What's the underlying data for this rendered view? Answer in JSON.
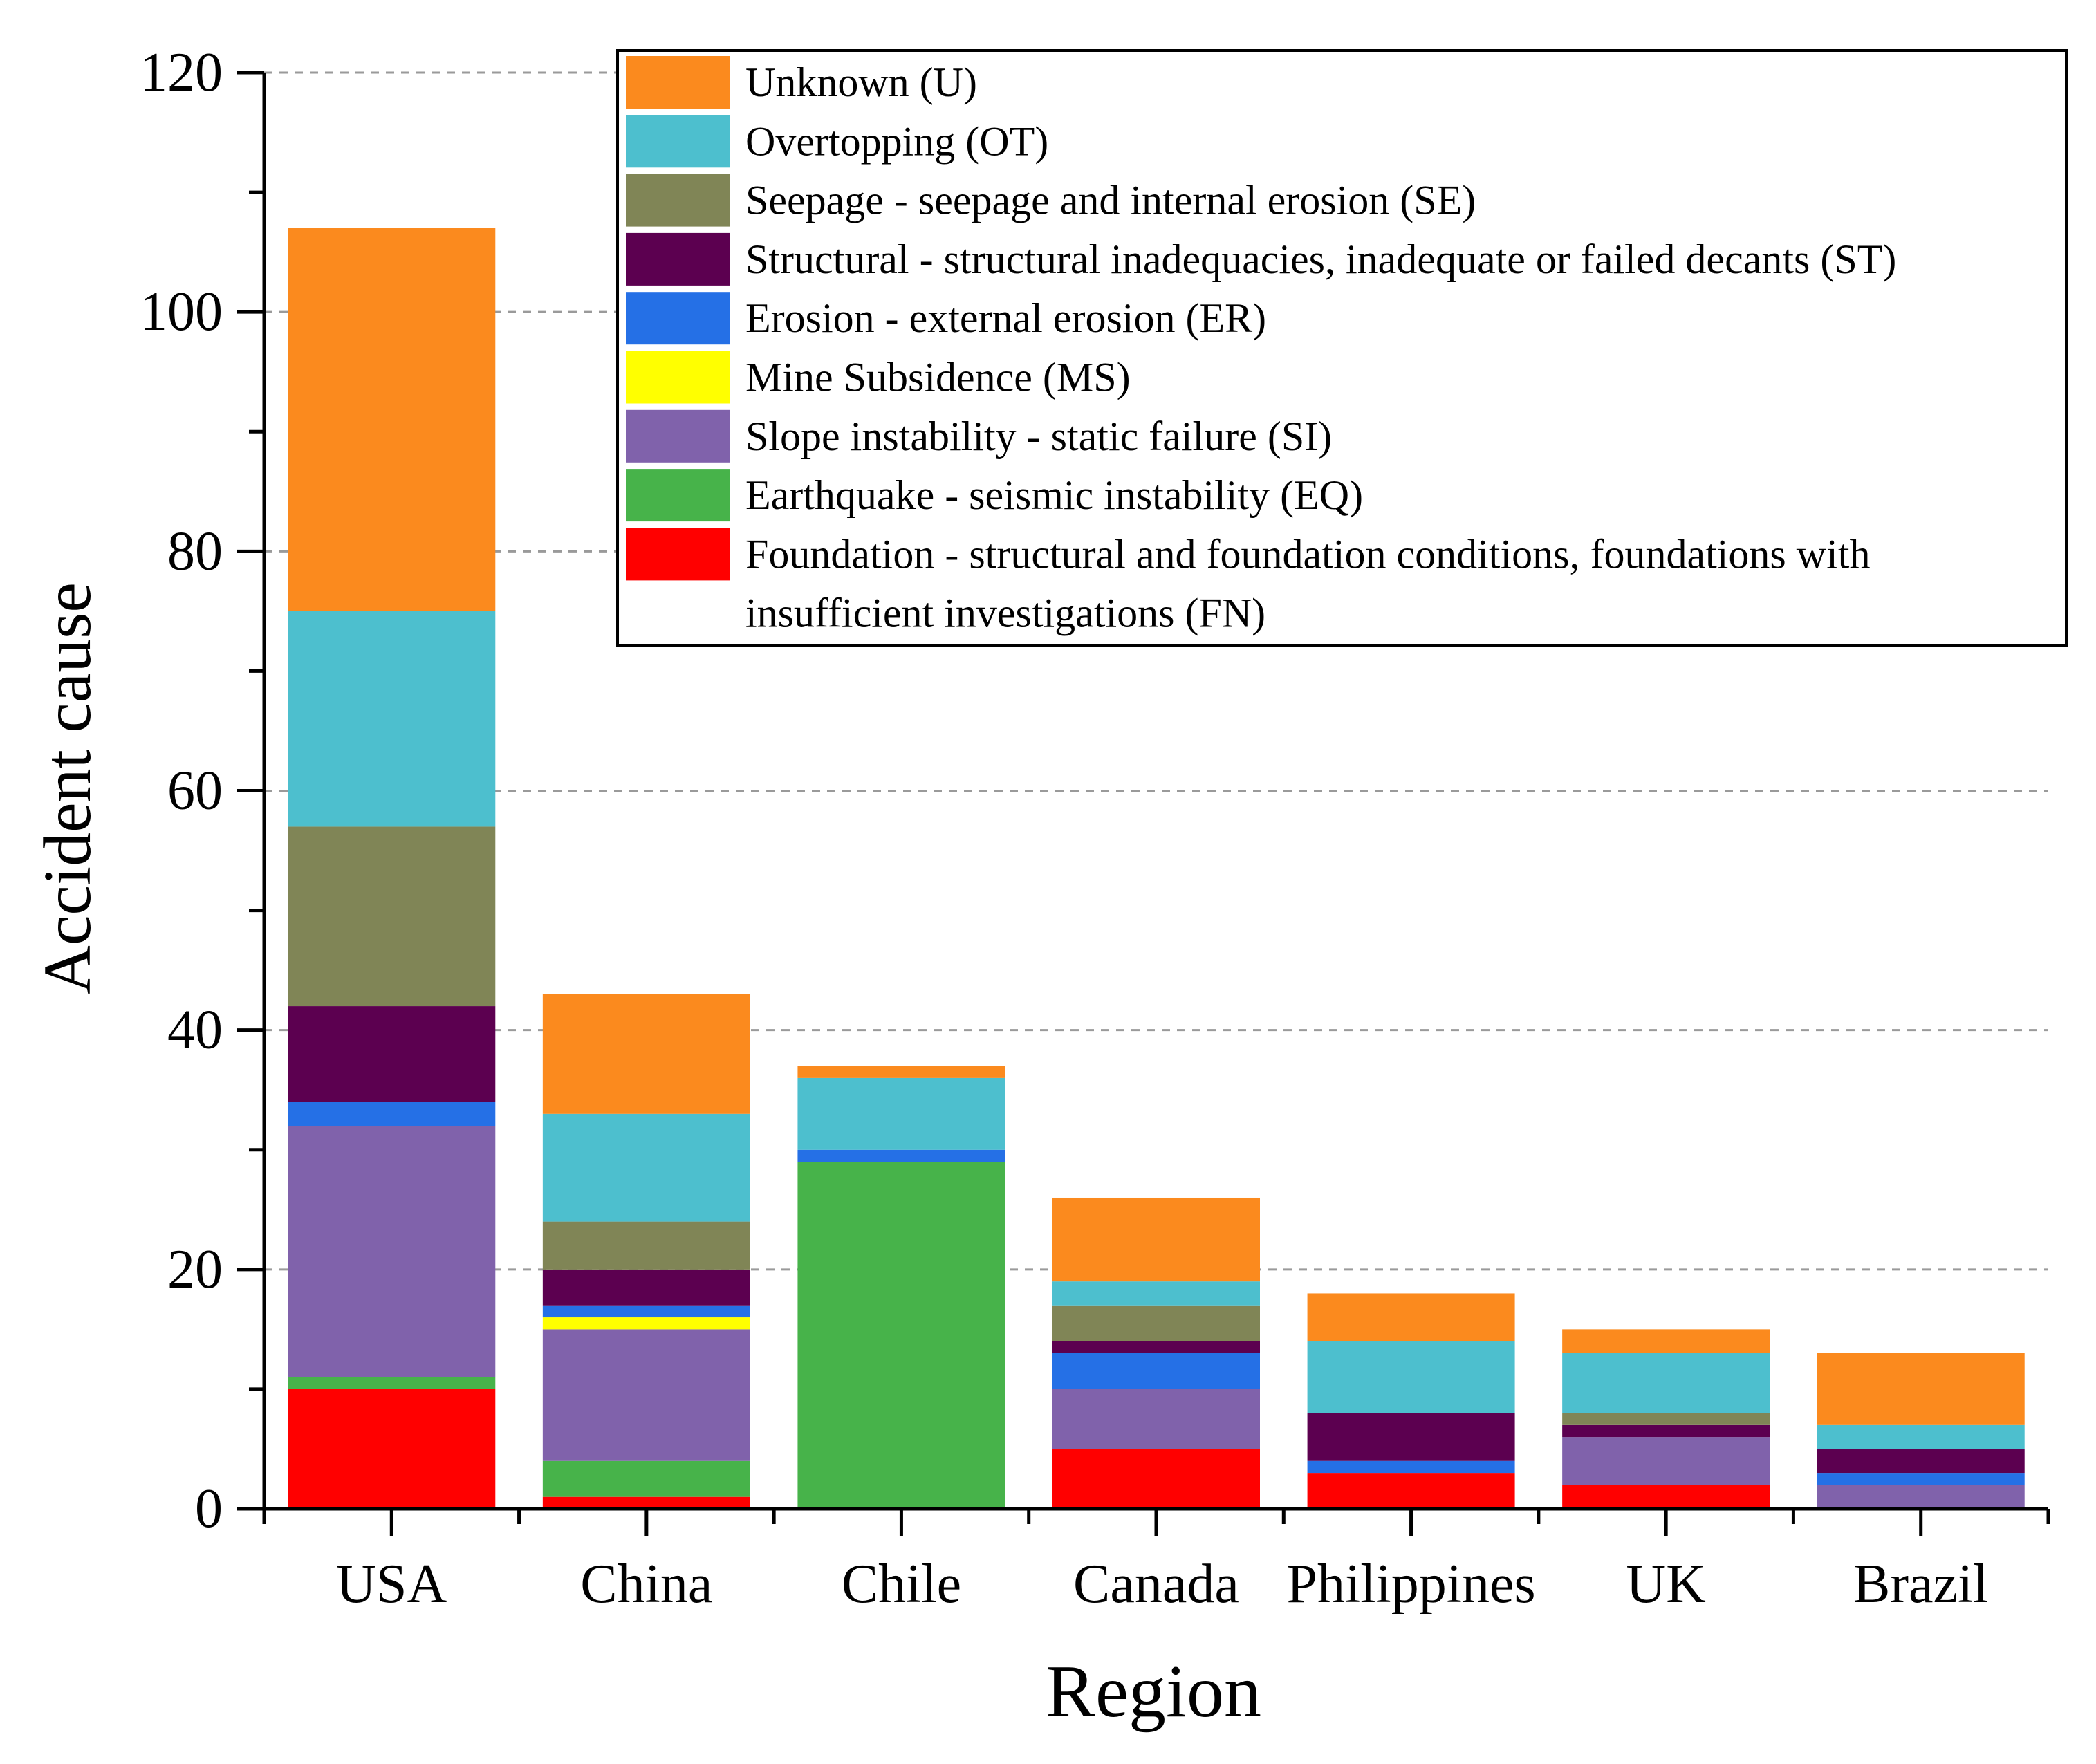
{
  "chart_data": {
    "type": "bar",
    "stacked": true,
    "title": "",
    "xlabel": "Region",
    "ylabel": "Accident cause",
    "ylim": [
      0,
      120
    ],
    "yticks": [
      0,
      20,
      40,
      60,
      80,
      100,
      120
    ],
    "grid": "horizontal dashed",
    "legend_position": "top-right",
    "categories": [
      "USA",
      "China",
      "Chile",
      "Canada",
      "Philippines",
      "UK",
      "Brazil"
    ],
    "series": [
      {
        "name": "Foundation - structural and foundation conditions, foundations with insufficient investigations (FN)",
        "short": "FN",
        "color": "#ff0000",
        "values": [
          10,
          1,
          0,
          5,
          3,
          2,
          0
        ]
      },
      {
        "name": "Earthquake - seismic instability (EQ)",
        "short": "EQ",
        "color": "#47b34a",
        "values": [
          1,
          3,
          29,
          0,
          0,
          0,
          0
        ]
      },
      {
        "name": "Slope instability - static failure (SI)",
        "short": "SI",
        "color": "#8062ab",
        "values": [
          21,
          11,
          0,
          5,
          0,
          4,
          2
        ]
      },
      {
        "name": "Mine Subsidence (MS)",
        "short": "MS",
        "color": "#ffff00",
        "values": [
          0,
          1,
          0,
          0,
          0,
          0,
          0
        ]
      },
      {
        "name": "Erosion - external erosion (ER)",
        "short": "ER",
        "color": "#2570e6",
        "values": [
          2,
          1,
          1,
          3,
          1,
          0,
          1
        ]
      },
      {
        "name": "Structural - structural inadequacies, inadequate or failed decants (ST)",
        "short": "ST",
        "color": "#5c0050",
        "values": [
          8,
          3,
          0,
          1,
          4,
          1,
          2
        ]
      },
      {
        "name": "Seepage - seepage and internal erosion (SE)",
        "short": "SE",
        "color": "#808556",
        "values": [
          15,
          4,
          0,
          3,
          0,
          1,
          0
        ]
      },
      {
        "name": "Overtopping (OT)",
        "short": "OT",
        "color": "#4dbfce",
        "values": [
          18,
          9,
          6,
          2,
          6,
          5,
          2
        ]
      },
      {
        "name": "Unknown (U)",
        "short": "U",
        "color": "#fb8a1e",
        "values": [
          32,
          10,
          1,
          7,
          4,
          2,
          6
        ]
      }
    ],
    "legend_order": [
      "U",
      "OT",
      "SE",
      "ST",
      "ER",
      "MS",
      "SI",
      "EQ",
      "FN"
    ]
  }
}
